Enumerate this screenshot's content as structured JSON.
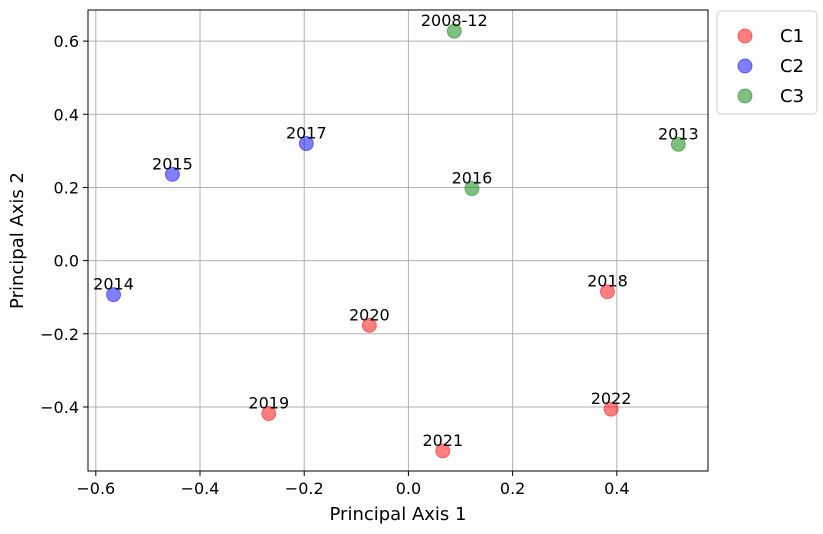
{
  "chart_data": {
    "type": "scatter",
    "title": "",
    "xlabel": "Principal Axis 1",
    "ylabel": "Principal Axis 2",
    "xlim": [
      -0.615,
      0.575
    ],
    "ylim": [
      -0.575,
      0.685
    ],
    "xticks": [
      -0.6,
      -0.4,
      -0.2,
      0.0,
      0.2,
      0.4
    ],
    "xtick_labels": [
      "−0.6",
      "−0.4",
      "−0.2",
      "0.0",
      "0.2",
      "0.4"
    ],
    "yticks": [
      -0.4,
      -0.2,
      0.0,
      0.2,
      0.4,
      0.6
    ],
    "ytick_labels": [
      "−0.4",
      "−0.2",
      "0.0",
      "0.2",
      "0.4",
      "0.6"
    ],
    "grid": true,
    "legend_position": "outside top-right",
    "series": [
      {
        "name": "C1",
        "color": "#ff0000",
        "points": [
          {
            "label": "2018",
            "x": 0.382,
            "y": -0.085
          },
          {
            "label": "2019",
            "x": -0.268,
            "y": -0.418
          },
          {
            "label": "2020",
            "x": -0.075,
            "y": -0.177
          },
          {
            "label": "2021",
            "x": 0.066,
            "y": -0.52
          },
          {
            "label": "2022",
            "x": 0.389,
            "y": -0.406
          }
        ]
      },
      {
        "name": "C2",
        "color": "#0000ff",
        "points": [
          {
            "label": "2014",
            "x": -0.566,
            "y": -0.093
          },
          {
            "label": "2015",
            "x": -0.453,
            "y": 0.236
          },
          {
            "label": "2017",
            "x": -0.196,
            "y": 0.32
          }
        ]
      },
      {
        "name": "C3",
        "color": "#008000",
        "points": [
          {
            "label": "2008-12",
            "x": 0.088,
            "y": 0.627
          },
          {
            "label": "2013",
            "x": 0.518,
            "y": 0.318
          },
          {
            "label": "2016",
            "x": 0.122,
            "y": 0.197
          }
        ]
      }
    ]
  }
}
